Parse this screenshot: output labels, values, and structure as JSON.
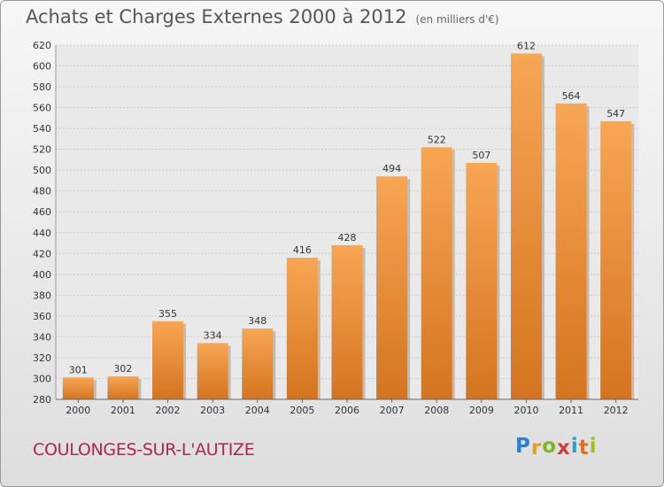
{
  "header": {
    "title": "Achats et Charges Externes 2000 à 2012",
    "subtitle": "(en milliers d'€)"
  },
  "footer": {
    "commune": "COULONGES-SUR-L'AUTIZE",
    "logo": {
      "letters": [
        "P",
        "r",
        "o",
        "x",
        "i",
        "t",
        "i"
      ],
      "colors": [
        "#2a7fd4",
        "#e0a020",
        "#7fb22f",
        "#d63a3a",
        "#2a9fd4",
        "#e07020",
        "#9ac020"
      ]
    }
  },
  "chart_data": {
    "type": "bar",
    "title": "Achats et Charges Externes 2000 à 2012",
    "subtitle": "(en milliers d'€)",
    "categories": [
      "2000",
      "2001",
      "2002",
      "2003",
      "2004",
      "2005",
      "2006",
      "2007",
      "2008",
      "2009",
      "2010",
      "2011",
      "2012"
    ],
    "values": [
      301,
      302,
      355,
      334,
      348,
      416,
      428,
      494,
      522,
      507,
      612,
      564,
      547
    ],
    "yticks": [
      280,
      300,
      320,
      340,
      360,
      380,
      400,
      420,
      440,
      460,
      480,
      500,
      520,
      540,
      560,
      580,
      600,
      620
    ],
    "ylim": [
      280,
      620
    ],
    "grid": true,
    "bar_color_top": "#f7a654",
    "bar_color_bottom": "#d47420"
  }
}
